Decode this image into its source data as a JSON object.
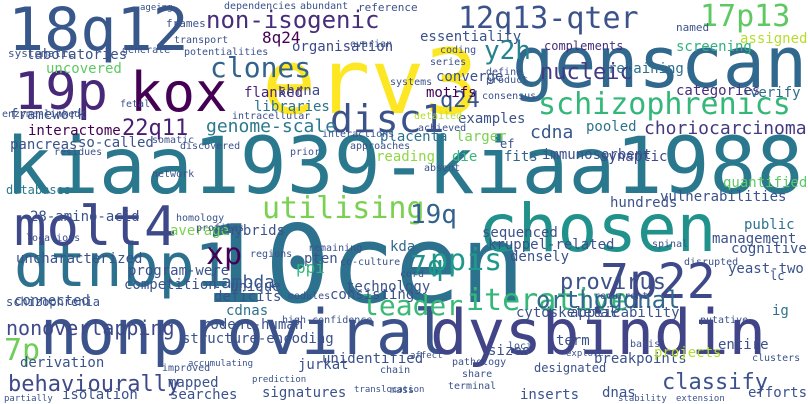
{
  "words": [
    {
      "text": "10cen",
      "color": "#2c728e"
    },
    {
      "text": "kiaa1939-kiaa1988",
      "color": "#2a788e"
    },
    {
      "text": "nonproviral",
      "color": "#3b528b"
    },
    {
      "text": "dysbindin",
      "color": "#414487"
    },
    {
      "text": "erv3",
      "color": "#fde725"
    },
    {
      "text": "genscan",
      "color": "#31688e"
    },
    {
      "text": "chosen",
      "color": "#21918c"
    },
    {
      "text": "dtnbp1",
      "color": "#2c728e"
    },
    {
      "text": "18q12",
      "color": "#38588c"
    },
    {
      "text": "19p",
      "color": "#482878"
    },
    {
      "text": "kox",
      "color": "#440154"
    },
    {
      "text": "molt4",
      "color": "#3e4989"
    },
    {
      "text": "7p22",
      "color": "#3e4989"
    },
    {
      "text": "schizophrenics",
      "color": "#35b779"
    },
    {
      "text": "nucleic",
      "color": "#443983"
    },
    {
      "text": "non-isogenic",
      "color": "#472d7b"
    },
    {
      "text": "12q13-qter",
      "color": "#3b528b"
    },
    {
      "text": "17p13",
      "color": "#5ec962"
    },
    {
      "text": "disc1",
      "color": "#3b528b"
    },
    {
      "text": "clones",
      "color": "#33638d"
    },
    {
      "text": "y2h",
      "color": "#26828e"
    },
    {
      "text": "utilising",
      "color": "#7ad151"
    },
    {
      "text": "iterative",
      "color": "#35b779"
    },
    {
      "text": "orthogonal",
      "color": "#31688e"
    },
    {
      "text": "leader",
      "color": "#3aba76"
    },
    {
      "text": "xp",
      "color": "#440154"
    },
    {
      "text": "ppis",
      "color": "#1f9a8a"
    },
    {
      "text": "19q",
      "color": "#33638d"
    },
    {
      "text": "7q",
      "color": "#21918c"
    },
    {
      "text": "7p",
      "color": "#6ece58"
    },
    {
      "text": "behaviourally",
      "color": "#3e4989"
    },
    {
      "text": "nonoverlapping",
      "color": "#3e4989"
    },
    {
      "text": "provirus",
      "color": "#3b528b"
    },
    {
      "text": "classify",
      "color": "#3b528b"
    },
    {
      "text": "22q11",
      "color": "#481f70"
    },
    {
      "text": "genome-scale",
      "color": "#2a788e"
    },
    {
      "text": "choriocarcinoma",
      "color": "#443983"
    },
    {
      "text": "cdna",
      "color": "#38588c"
    },
    {
      "text": "lambda",
      "color": "#38588c"
    },
    {
      "text": "q24",
      "color": "#39568c"
    },
    {
      "text": "8q24",
      "color": "#440154"
    },
    {
      "text": "organisation",
      "color": "#3e4989"
    },
    {
      "text": "flanked",
      "color": "#482475"
    },
    {
      "text": "libraries",
      "color": "#2c728e"
    },
    {
      "text": "essentiality",
      "color": "#3b528b"
    },
    {
      "text": "retaining",
      "color": "#2d708e"
    },
    {
      "text": "complements",
      "color": "#472f7d"
    },
    {
      "text": "screening",
      "color": "#2fb47c"
    },
    {
      "text": "assigned",
      "color": "#b5de2b"
    },
    {
      "text": "categories",
      "color": "#472d7b"
    },
    {
      "text": "verify",
      "color": "#2f6c8e"
    },
    {
      "text": "management",
      "color": "#3b528b"
    },
    {
      "text": "public",
      "color": "#2c728e"
    },
    {
      "text": "cognitive",
      "color": "#3b528b"
    },
    {
      "text": "yeast-two",
      "color": "#3b528b"
    },
    {
      "text": "vulnerabilities",
      "color": "#3b528b"
    },
    {
      "text": "quantified",
      "color": "#5ec962"
    },
    {
      "text": "hundreds",
      "color": "#3b528b"
    },
    {
      "text": "immunosorbent",
      "color": "#3b528b"
    },
    {
      "text": "pooled",
      "color": "#2c728e"
    },
    {
      "text": "synaptic",
      "color": "#3e4989"
    },
    {
      "text": "shrna",
      "color": "#3e4989"
    },
    {
      "text": "motifs",
      "color": "#440154"
    },
    {
      "text": "converge",
      "color": "#3b528b"
    },
    {
      "text": "placenta",
      "color": "#2c728e"
    },
    {
      "text": "examples",
      "color": "#3b528b"
    },
    {
      "text": "larger",
      "color": "#7ad151"
    },
    {
      "text": "reading",
      "color": "#8fd744"
    },
    {
      "text": "fits",
      "color": "#33638d"
    },
    {
      "text": "die",
      "color": "#35b779"
    },
    {
      "text": "ef",
      "color": "#3b528b"
    },
    {
      "text": "kda",
      "color": "#31688e"
    },
    {
      "text": "sequenced",
      "color": "#3b528b"
    },
    {
      "text": "kruppel-related",
      "color": "#3b528b"
    },
    {
      "text": "densely",
      "color": "#3b528b"
    },
    {
      "text": "hybrids",
      "color": "#3b528b"
    },
    {
      "text": "average",
      "color": "#7ad151"
    },
    {
      "text": "28-amino-acid",
      "color": "#3b528b"
    },
    {
      "text": "databases",
      "color": "#2a788e"
    },
    {
      "text": "pancreas",
      "color": "#3b528b"
    },
    {
      "text": "so-called",
      "color": "#3b528b"
    },
    {
      "text": "interactome",
      "color": "#440154"
    },
    {
      "text": "framework",
      "color": "#3b528b"
    },
    {
      "text": "laboratories",
      "color": "#3b528b"
    },
    {
      "text": "uncovered",
      "color": "#5ec962"
    },
    {
      "text": "uncharacterized",
      "color": "#3b528b"
    },
    {
      "text": "program-were",
      "color": "#3b528b"
    },
    {
      "text": "competition",
      "color": "#3b528b"
    },
    {
      "text": "connected",
      "color": "#3b528b"
    },
    {
      "text": "unique",
      "color": "#3b528b"
    },
    {
      "text": "deficits",
      "color": "#3b528b"
    },
    {
      "text": "cdnas",
      "color": "#2c728e"
    },
    {
      "text": "rodent-human",
      "color": "#3b528b"
    },
    {
      "text": "structure-encoding",
      "color": "#3b528b"
    },
    {
      "text": "derivation",
      "color": "#3b528b"
    },
    {
      "text": "pten",
      "color": "#3b528b"
    },
    {
      "text": "ppi",
      "color": "#35b779"
    },
    {
      "text": "technology",
      "color": "#3b528b"
    },
    {
      "text": "consisting",
      "color": "#3b528b"
    },
    {
      "text": "unidentified",
      "color": "#3b528b"
    },
    {
      "text": "sizes",
      "color": "#3b528b"
    },
    {
      "text": "term",
      "color": "#3b528b"
    },
    {
      "text": "breakpoints",
      "color": "#3b528b"
    },
    {
      "text": "entire",
      "color": "#3b528b"
    },
    {
      "text": "projects",
      "color": "#b5de2b"
    },
    {
      "text": "designated",
      "color": "#3b528b"
    },
    {
      "text": "cytoskeletal",
      "color": "#3b528b"
    },
    {
      "text": "applicability",
      "color": "#3b528b"
    },
    {
      "text": "jurkat",
      "color": "#3b528b"
    },
    {
      "text": "mapped",
      "color": "#3b528b"
    },
    {
      "text": "searches",
      "color": "#3b528b"
    },
    {
      "text": "signatures",
      "color": "#3b528b"
    },
    {
      "text": "isolation",
      "color": "#3b528b"
    },
    {
      "text": "dnas",
      "color": "#3b528b"
    },
    {
      "text": "inserts",
      "color": "#3b528b"
    },
    {
      "text": "efforts",
      "color": "#3b528b"
    },
    {
      "text": "schizophrenia",
      "color": "#3b528b"
    },
    {
      "text": "ig",
      "color": "#2c728e"
    },
    {
      "text": "lc",
      "color": "#3b528b"
    },
    {
      "text": "ageing",
      "color": "#3b528b"
    },
    {
      "text": "frames",
      "color": "#3b528b"
    },
    {
      "text": "dependencies",
      "color": "#3b528b"
    },
    {
      "text": "abundant",
      "color": "#3b528b"
    },
    {
      "text": "reference",
      "color": "#3b528b"
    },
    {
      "text": "named",
      "color": "#3b528b"
    },
    {
      "text": "systematic",
      "color": "#3b528b"
    },
    {
      "text": "potentialities",
      "color": "#3b528b"
    },
    {
      "text": "transport",
      "color": "#3b528b"
    },
    {
      "text": "ovarian",
      "color": "#3b528b"
    },
    {
      "text": "coding",
      "color": "#3b528b"
    },
    {
      "text": "product",
      "color": "#3b528b"
    },
    {
      "text": "define",
      "color": "#3b528b"
    },
    {
      "text": "series",
      "color": "#3b528b"
    },
    {
      "text": "systems",
      "color": "#3b528b"
    },
    {
      "text": "consensus",
      "color": "#3b528b"
    },
    {
      "text": "generate",
      "color": "#3b528b"
    },
    {
      "text": "fetal",
      "color": "#3b528b"
    },
    {
      "text": "intracellular",
      "color": "#3b528b"
    },
    {
      "text": "enzyme-linked",
      "color": "#3b528b"
    },
    {
      "text": "residues",
      "color": "#3b528b"
    },
    {
      "text": "somatic",
      "color": "#3b528b"
    },
    {
      "text": "discovered",
      "color": "#3b528b"
    },
    {
      "text": "interactions",
      "color": "#3b528b"
    },
    {
      "text": "approaches",
      "color": "#3b528b"
    },
    {
      "text": "achieved",
      "color": "#3b528b"
    },
    {
      "text": "detailed",
      "color": "#b5de2b"
    },
    {
      "text": "prior",
      "color": "#3b528b"
    },
    {
      "text": "absent",
      "color": "#3b528b"
    },
    {
      "text": "network",
      "color": "#3b528b"
    },
    {
      "text": "homology",
      "color": "#3b528b"
    },
    {
      "text": "profiles",
      "color": "#3b528b"
    },
    {
      "text": "locations",
      "color": "#3b528b"
    },
    {
      "text": "regions",
      "color": "#3b528b"
    },
    {
      "text": "remaining",
      "color": "#3b528b"
    },
    {
      "text": "co-culture",
      "color": "#3b528b"
    },
    {
      "text": "cord",
      "color": "#3b528b"
    },
    {
      "text": "recurrent",
      "color": "#3b528b"
    },
    {
      "text": "spinal",
      "color": "#3b528b"
    },
    {
      "text": "disrupted",
      "color": "#3b528b"
    },
    {
      "text": "high-confidence",
      "color": "#3b528b"
    },
    {
      "text": "modules",
      "color": "#3b528b"
    },
    {
      "text": "pathology",
      "color": "#3b528b"
    },
    {
      "text": "loci",
      "color": "#3b528b"
    },
    {
      "text": "putative",
      "color": "#3b528b"
    },
    {
      "text": "basis",
      "color": "#3b528b"
    },
    {
      "text": "clusters",
      "color": "#3b528b"
    },
    {
      "text": "share",
      "color": "#3b528b"
    },
    {
      "text": "chain",
      "color": "#3b528b"
    },
    {
      "text": "terminal",
      "color": "#3b528b"
    },
    {
      "text": "stability",
      "color": "#3b528b"
    },
    {
      "text": "extension",
      "color": "#3b528b"
    },
    {
      "text": "translocation",
      "color": "#3b528b"
    },
    {
      "text": "mass",
      "color": "#3b528b"
    },
    {
      "text": "improved",
      "color": "#3b528b"
    },
    {
      "text": "accumulating",
      "color": "#3b528b"
    },
    {
      "text": "partially",
      "color": "#3b528b"
    },
    {
      "text": "prediction",
      "color": "#3b528b"
    },
    {
      "text": "affect",
      "color": "#3b528b"
    },
    {
      "text": "explore",
      "color": "#3b528b"
    },
    {
      "text": "reverse",
      "color": "#3b528b"
    }
  ]
}
